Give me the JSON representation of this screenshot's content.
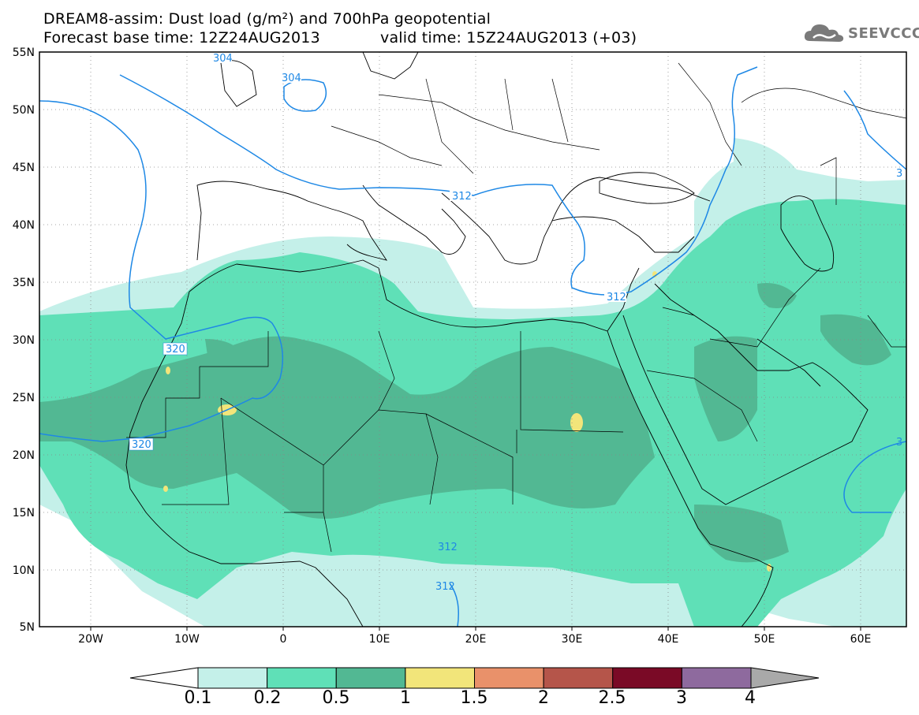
{
  "header": {
    "line1": "DREAM8-assim: Dust load (g/m²) and 700hPa geopotential",
    "line2_left": "Forecast base time: 12Z24AUG2013",
    "line2_right": "valid time: 15Z24AUG2013 (+03)",
    "logo_text": "SEEVCCC"
  },
  "axes": {
    "lat_labels": [
      "55N",
      "50N",
      "45N",
      "40N",
      "35N",
      "30N",
      "25N",
      "20N",
      "15N",
      "10N",
      "5N"
    ],
    "lon_labels": [
      "20W",
      "10W",
      "0",
      "10E",
      "20E",
      "30E",
      "40E",
      "50E",
      "60E"
    ]
  },
  "contours": {
    "labels": [
      "304",
      "304",
      "312",
      "312",
      "320",
      "320",
      "312",
      "312",
      "3",
      "3"
    ]
  },
  "colorbar": {
    "labels": [
      "0.1",
      "0.2",
      "0.5",
      "1",
      "1.5",
      "2",
      "2.5",
      "3",
      "4"
    ],
    "colors": [
      "#c4f0e9",
      "#5fe0b7",
      "#52b893",
      "#f2e57a",
      "#e9916a",
      "#b5554a",
      "#7a0a26",
      "#8e6a9e"
    ],
    "under_color": "#ffffff",
    "over_color": "#a9a9a9"
  },
  "colors": {
    "contour": "#1e88e5",
    "border": "#000000"
  }
}
